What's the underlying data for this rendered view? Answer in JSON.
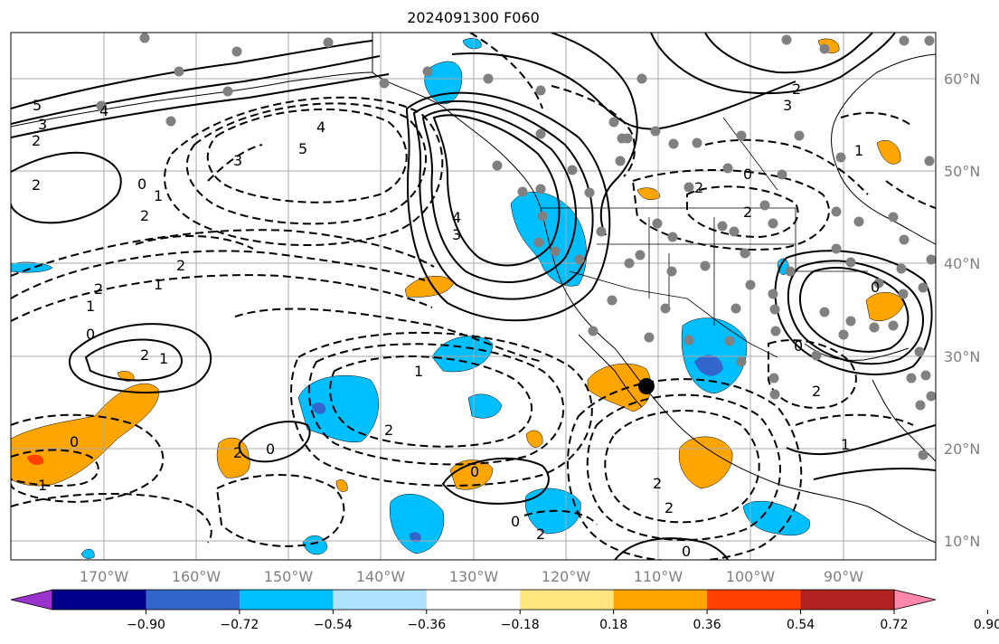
{
  "title": "2024091300 F060",
  "lat_labels": [
    "60°N",
    "50°N",
    "40°N",
    "30°N",
    "20°N",
    "10°N"
  ],
  "lon_labels": [
    "170°W",
    "160°W",
    "150°W",
    "140°W",
    "130°W",
    "120°W",
    "110°W",
    "100°W",
    "90°W"
  ],
  "colorbar": {
    "colors": [
      "#9933cc",
      "#00008b",
      "#3366cc",
      "#00bfff",
      "#b0e2ff",
      "#ffffff",
      "#ffe680",
      "#ffa500",
      "#ff4000",
      "#b22222",
      "#ff88aa"
    ],
    "labels": [
      "−0.90",
      "−0.72",
      "−0.54",
      "−0.36",
      "−0.18",
      "0.18",
      "0.36",
      "0.54",
      "0.72",
      "0.90"
    ]
  },
  "contour_labels": [
    "5",
    "3",
    "2",
    "4",
    "0",
    "1",
    "2",
    "2",
    "4",
    "5",
    "3",
    "2",
    "1",
    "2",
    "1",
    "0",
    "2",
    "1",
    "0",
    "1",
    "2",
    "0",
    "2",
    "1",
    "0",
    "0",
    "2",
    "4",
    "3",
    "2",
    "0",
    "2",
    "2",
    "2",
    "1",
    "0",
    "3",
    "0",
    "2",
    "2",
    "1",
    "0"
  ],
  "legend_colors": {
    "negative_fill": "#00bfff",
    "positive_fill": "#ffa500",
    "strong_negative": "#3366cc",
    "strong_positive": "#ff4000",
    "station_dot": "#808080",
    "marker": "#000000"
  }
}
